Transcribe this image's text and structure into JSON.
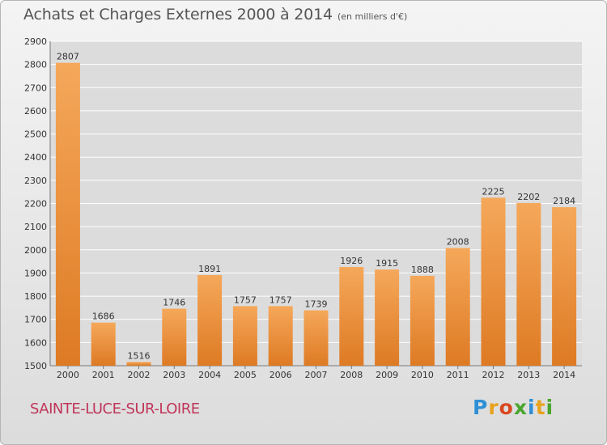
{
  "title": "Achats et Charges Externes 2000 à 2014",
  "subtitle": "(en milliers d'€)",
  "commune": "SAINTE-LUCE-SUR-LOIRE",
  "logo": {
    "letters": [
      "P",
      "r",
      "o",
      "x",
      "i",
      "t",
      "i"
    ],
    "colors": [
      "#2f8fd6",
      "#e8a21e",
      "#d9481f",
      "#4aa52e",
      "#2f8fd6",
      "#e8a21e",
      "#4aa52e"
    ]
  },
  "colors": {
    "bar_light": "#f5a85a",
    "bar_dark": "#de7a24",
    "grid": "#ffffff",
    "axis_text": "#333333"
  },
  "chart_data": {
    "type": "bar",
    "title": "Achats et Charges Externes 2000 à 2014",
    "categories": [
      "2000",
      "2001",
      "2002",
      "2003",
      "2004",
      "2005",
      "2006",
      "2007",
      "2008",
      "2009",
      "2010",
      "2011",
      "2012",
      "2013",
      "2014"
    ],
    "values": [
      2807,
      1686,
      1516,
      1746,
      1891,
      1757,
      1757,
      1739,
      1926,
      1915,
      1888,
      2008,
      2225,
      2202,
      2184
    ],
    "ylim": [
      1500,
      2900
    ],
    "yticks": [
      1500,
      1600,
      1700,
      1800,
      1900,
      2000,
      2100,
      2200,
      2300,
      2400,
      2500,
      2600,
      2700,
      2800,
      2900
    ],
    "grid": true,
    "xlabel": "",
    "ylabel": ""
  }
}
